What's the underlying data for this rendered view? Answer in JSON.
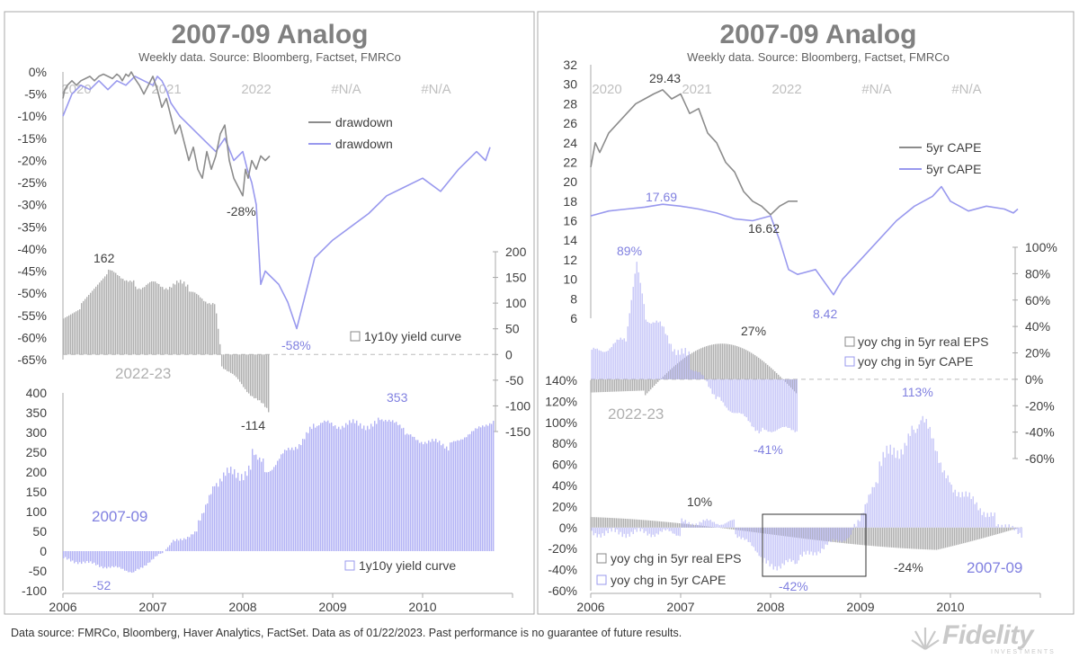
{
  "colors": {
    "gray": "#8c8c8c",
    "purple": "#9999ee",
    "purple_bar": "#b3b3f5",
    "gray_bar": "#b0b0b0",
    "frame": "#a8a8a8",
    "text": "#404040",
    "label_purple": "#8080e0"
  },
  "footer": {
    "text": "Data source: FMRCo, Bloomberg, Haver Analytics, FactSet. Data as of 01/22/2023. Past performance is no guarantee of future results."
  },
  "logo": {
    "word": "Fidelity",
    "sub": "INVESTMENTS"
  },
  "chart_data": [
    {
      "type": "line",
      "panel": "left",
      "title": "2007-09 Analog",
      "subtitle": "Weekly data.  Source: Bloomberg,  Factset, FMRCo",
      "top_axis_labels": [
        "2020",
        "2021",
        "2022",
        "#N/A",
        "#N/A"
      ],
      "bottom_axis_labels": [
        "2006",
        "2007",
        "2008",
        "2009",
        "2010"
      ],
      "top_y_ticks": [
        "0%",
        "-5%",
        "-10%",
        "-15%",
        "-20%",
        "-25%",
        "-30%",
        "-35%",
        "-40%",
        "-45%",
        "-50%",
        "-55%",
        "-60%",
        "-65%"
      ],
      "top_ylim": [
        -65,
        0
      ],
      "legend": [
        "drawdown",
        "drawdown"
      ],
      "series_2022": {
        "name": "drawdown",
        "x": [
          0,
          0.02,
          0.05,
          0.1,
          0.15,
          0.2,
          0.25,
          0.3,
          0.35,
          0.4,
          0.45,
          0.5,
          0.55,
          0.6,
          0.63,
          0.66,
          0.7,
          0.73,
          0.76,
          0.8,
          0.85,
          0.9,
          0.95,
          1.0,
          1.05,
          1.1,
          1.15,
          1.2,
          1.25,
          1.3,
          1.35,
          1.4,
          1.45,
          1.5,
          1.55,
          1.6,
          1.65,
          1.7,
          1.75,
          1.8,
          1.85,
          1.9,
          1.95,
          2.0,
          2.03,
          2.06,
          2.1,
          2.15,
          2.2,
          2.25,
          2.3
        ],
        "values": [
          -6,
          -4,
          -3,
          -2,
          -3,
          -2,
          -1.5,
          -1,
          -2,
          -1,
          -0.5,
          -1,
          -1.5,
          -0.5,
          -1,
          -2,
          -0.5,
          -1,
          0,
          -1.5,
          -3,
          -5,
          -3,
          -1,
          -4,
          -8,
          -6,
          -10,
          -14,
          -12,
          -16,
          -20,
          -17,
          -22,
          -24,
          -18,
          -22,
          -19,
          -14,
          -12,
          -20,
          -24,
          -26,
          -28,
          -22,
          -24,
          -20,
          -22,
          -19,
          -20,
          -19
        ]
      },
      "series_2007": {
        "name": "drawdown",
        "x": [
          0,
          0.1,
          0.2,
          0.3,
          0.4,
          0.5,
          0.6,
          0.7,
          0.8,
          0.9,
          1.0,
          1.05,
          1.1,
          1.15,
          1.2,
          1.3,
          1.4,
          1.5,
          1.6,
          1.7,
          1.8,
          1.9,
          2.0,
          2.05,
          2.1,
          2.15,
          2.2,
          2.25,
          2.3,
          2.4,
          2.5,
          2.6,
          2.7,
          2.8,
          2.9,
          3.0,
          3.2,
          3.4,
          3.6,
          3.8,
          4.0,
          4.2,
          4.4,
          4.6,
          4.7,
          4.75
        ],
        "values": [
          -10,
          -5,
          -3,
          -4,
          -2,
          -4,
          -2,
          -3,
          -1,
          -2,
          -3,
          -1,
          -2,
          -4,
          -7,
          -10,
          -12,
          -14,
          -16,
          -18,
          -15,
          -20,
          -18,
          -22,
          -25,
          -30,
          -48,
          -45,
          -46,
          -48,
          -52,
          -58,
          -50,
          -42,
          -40,
          -38,
          -35,
          -32,
          -28,
          -26,
          -24,
          -27,
          -22,
          -18,
          -20,
          -17
        ]
      },
      "annotations": [
        "-28%",
        "-58%"
      ],
      "bars_top": {
        "legend": "1y10y yield curve",
        "right_ticks": [
          "200",
          "150",
          "100",
          "50",
          "0",
          "-50",
          "-100",
          "-150"
        ],
        "ylim": [
          -150,
          200
        ],
        "peak_label": "162",
        "trough_label": "-114",
        "period_label": "2022-23"
      },
      "bars_bottom": {
        "legend": "1y10y yield curve",
        "left_ticks": [
          "400",
          "350",
          "300",
          "250",
          "200",
          "150",
          "100",
          "50",
          "0",
          "-50",
          "-100"
        ],
        "ylim": [
          -100,
          400
        ],
        "peak_label": "353",
        "trough_label": "-52",
        "period_label": "2007-09"
      }
    },
    {
      "type": "line",
      "panel": "right",
      "title": "2007-09 Analog",
      "subtitle": "Weekly data.  Source: Bloomberg,  Factset, FMRCo",
      "top_axis_labels": [
        "2020",
        "2021",
        "2022",
        "#N/A",
        "#N/A"
      ],
      "bottom_axis_labels": [
        "2006",
        "2007",
        "2008",
        "2009",
        "2010"
      ],
      "top_y_ticks": [
        "32",
        "30",
        "28",
        "26",
        "24",
        "22",
        "20",
        "18",
        "16",
        "14",
        "12",
        "10",
        "8",
        "6"
      ],
      "top_ylim": [
        6,
        32
      ],
      "legend": [
        "5yr CAPE",
        "5yr CAPE"
      ],
      "series_2022": {
        "name": "5yr CAPE",
        "x": [
          0,
          0.05,
          0.1,
          0.2,
          0.3,
          0.4,
          0.5,
          0.6,
          0.7,
          0.8,
          0.9,
          1.0,
          1.1,
          1.2,
          1.3,
          1.4,
          1.5,
          1.6,
          1.7,
          1.8,
          1.9,
          2.0,
          2.1,
          2.2,
          2.3
        ],
        "values": [
          21.5,
          24,
          23,
          25,
          26,
          27,
          28,
          28.5,
          29,
          29.43,
          28.5,
          29,
          27,
          27.5,
          25,
          24,
          22,
          21,
          19,
          18,
          17.5,
          16.62,
          17.5,
          18,
          18
        ]
      },
      "series_2007": {
        "name": "5yr CAPE",
        "x": [
          0,
          0.2,
          0.4,
          0.6,
          0.8,
          1.0,
          1.2,
          1.4,
          1.6,
          1.8,
          2.0,
          2.1,
          2.2,
          2.3,
          2.5,
          2.7,
          2.8,
          3.0,
          3.2,
          3.4,
          3.6,
          3.8,
          3.9,
          4.0,
          4.2,
          4.4,
          4.6,
          4.7,
          4.75
        ],
        "values": [
          16.5,
          17,
          17.2,
          17.4,
          17.69,
          17.5,
          17.2,
          16.8,
          16.2,
          16,
          16.5,
          14,
          11,
          10.5,
          11,
          8.42,
          10,
          12,
          14,
          16,
          17.5,
          18.5,
          19.5,
          18,
          17,
          17.5,
          17.2,
          16.8,
          17.2
        ]
      },
      "annotations": [
        "29.43",
        "17.69",
        "16.62",
        "8.42"
      ],
      "bars_top": {
        "legend": [
          "yoy chg in 5yr real EPS",
          "yoy chg in 5yr CAPE"
        ],
        "right_ticks": [
          "100%",
          "80%",
          "60%",
          "40%",
          "20%",
          "0%",
          "-20%",
          "-40%",
          "-60%"
        ],
        "ylim": [
          -60,
          100
        ],
        "peak_label": "89%",
        "eps_label": "27%",
        "trough_label": "-41%",
        "period_label": "2022-23"
      },
      "bars_bottom": {
        "legend": [
          "yoy chg in 5yr real EPS",
          "yoy chg in 5yr CAPE"
        ],
        "left_ticks": [
          "140%",
          "120%",
          "100%",
          "80%",
          "60%",
          "40%",
          "20%",
          "0%",
          "-20%",
          "-40%",
          "-60%"
        ],
        "ylim": [
          -60,
          140
        ],
        "peak_label": "113%",
        "eps_label": "10%",
        "eps_trough_label": "-24%",
        "trough_label": "-42%",
        "period_label": "2007-09"
      }
    }
  ]
}
